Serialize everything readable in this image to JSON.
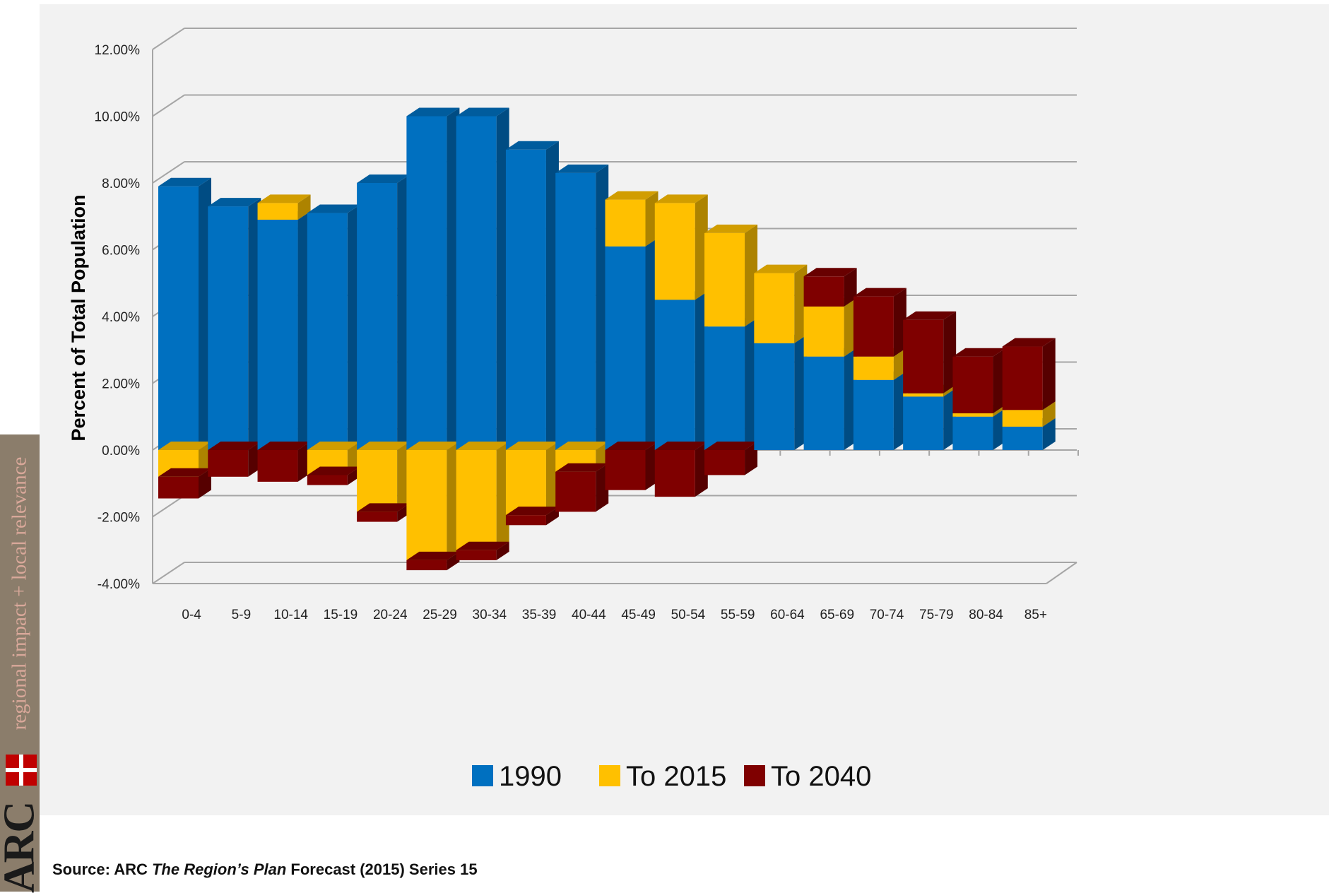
{
  "chart_data": {
    "type": "bar",
    "stacked": true,
    "three_d": true,
    "ylabel": "Percent of Total Population",
    "ylim": [
      -4,
      12
    ],
    "yticks": [
      "-4.00%",
      "-2.00%",
      "0.00%",
      "2.00%",
      "4.00%",
      "6.00%",
      "8.00%",
      "10.00%",
      "12.00%"
    ],
    "categories": [
      "0-4",
      "5-9",
      "10-14",
      "15-19",
      "20-24",
      "25-29",
      "30-34",
      "35-39",
      "40-44",
      "45-49",
      "50-54",
      "55-59",
      "60-64",
      "65-69",
      "70-74",
      "75-79",
      "80-84",
      "85+"
    ],
    "series": [
      {
        "name": "1990",
        "color": "#0070c0",
        "values": [
          7.9,
          7.3,
          6.9,
          7.1,
          8.0,
          10.0,
          10.0,
          9.0,
          8.3,
          6.1,
          4.5,
          3.7,
          3.2,
          2.8,
          2.1,
          1.6,
          1.0,
          0.7
        ]
      },
      {
        "name": "To 2015",
        "color": "#ffc000",
        "values": [
          -0.8,
          0.0,
          0.5,
          -0.75,
          -1.85,
          -3.3,
          -3.0,
          -1.95,
          -0.65,
          1.4,
          2.9,
          2.8,
          2.1,
          1.5,
          0.7,
          0.1,
          0.1,
          0.5
        ]
      },
      {
        "name": "To 2040",
        "color": "#7f0000",
        "values": [
          -0.65,
          -0.8,
          -0.95,
          -0.3,
          -0.3,
          -0.3,
          -0.3,
          -0.3,
          -1.2,
          -1.2,
          -1.4,
          -0.75,
          0.0,
          0.9,
          1.8,
          2.2,
          1.7,
          1.9
        ]
      }
    ],
    "grid": true,
    "legend_position": "bottom"
  },
  "source": {
    "prefix": "Source: ARC ",
    "title": "The Region’s Plan",
    "suffix": " Forecast (2015) Series 15"
  },
  "branding": {
    "tagline": "regional impact + local relevance",
    "logo_text": "ARC"
  }
}
